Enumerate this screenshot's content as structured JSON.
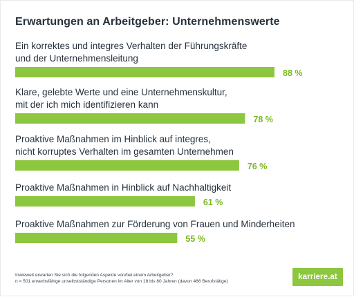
{
  "chart_data": {
    "type": "bar",
    "orientation": "horizontal",
    "title": "Erwartungen an Arbeitgeber: Unternehmenswerte",
    "categories": [
      [
        "Ein korrektes und integres Verhalten der Führungskräfte",
        "und der Unternehmensleitung"
      ],
      [
        "Klare, gelebte Werte und eine Unternehmenskultur,",
        "mit der ich mich identifizieren kann"
      ],
      [
        "Proaktive Maßnahmen im Hinblick auf integres,",
        "nicht korruptes Verhalten im gesamten Unternehmen"
      ],
      [
        "Proaktive Maßnahmen in Hinblick auf Nachhaltigkeit"
      ],
      [
        "Proaktive Maßnahmen zur Förderung von Frauen und Minderheiten"
      ]
    ],
    "values": [
      88,
      78,
      76,
      61,
      55
    ],
    "value_labels": [
      "88 %",
      "78 %",
      "76 %",
      "61 %",
      "55 %"
    ],
    "unit": "%",
    "xlim": [
      0,
      100
    ],
    "grid": false,
    "bar_color": "#8dc63f",
    "value_label_color": "#7ab81f"
  },
  "footnote": {
    "line1": "Inwieweit erwarten Sie sich die folgenden Aspekte von/bei einem Arbeitgeber?",
    "line2": "n = 501 erwerbsfähige unselbstständige Personen im Alter von 18 bis 60 Jahren (davon 466 Berufstätige)"
  },
  "logo": {
    "text": "karriere.at",
    "color": "#8dc63f"
  }
}
